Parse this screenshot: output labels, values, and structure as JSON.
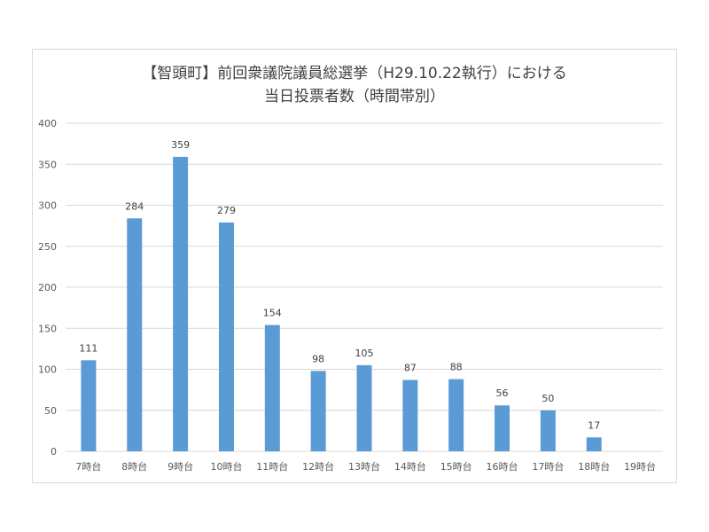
{
  "chart_data": {
    "type": "bar",
    "title_line1": "【智頭町】前回衆議院議員総選挙（H29.10.22執行）における",
    "title_line2": "当日投票者数（時間帯別）",
    "categories": [
      "7時台",
      "8時台",
      "9時台",
      "10時台",
      "11時台",
      "12時台",
      "13時台",
      "14時台",
      "15時台",
      "16時台",
      "17時台",
      "18時台",
      "19時台"
    ],
    "values": [
      111,
      284,
      359,
      279,
      154,
      98,
      105,
      87,
      88,
      56,
      50,
      17,
      null
    ],
    "y_ticks": [
      "0",
      "50",
      "100",
      "150",
      "200",
      "250",
      "300",
      "350",
      "400"
    ],
    "ylim": [
      0,
      400
    ],
    "grid": true,
    "bar_color": "#5b9bd5",
    "grid_color": "#d9d9d9"
  }
}
